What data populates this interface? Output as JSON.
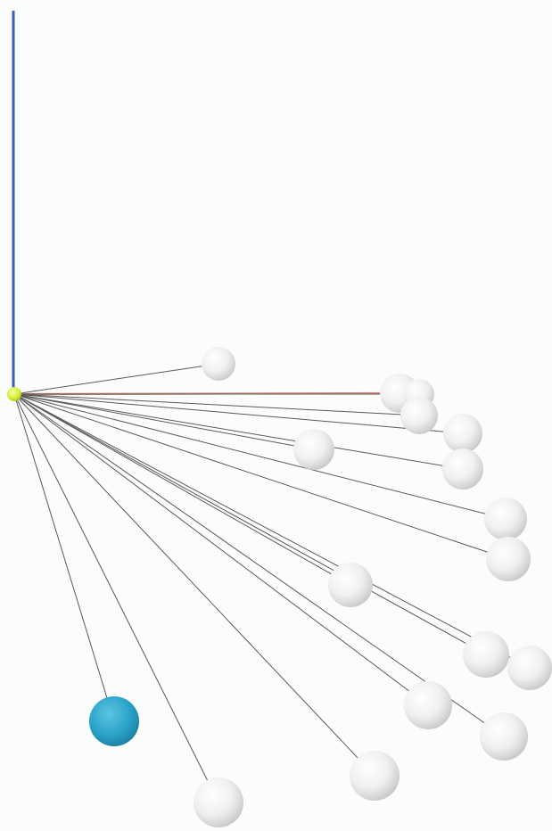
{
  "scene": {
    "description_free": true,
    "background_color": "#fbfcfc",
    "vertical_axis_color": "#3a5fb8",
    "highlight_edge_color": "#d48a78",
    "edge_color": "#5a5a5a",
    "hub_color": "#d9ef3a",
    "node_color": "#f2f2f2",
    "accent_node_color": "#2aa3c9",
    "node_count": 20,
    "accent_node_index": 18,
    "highlight_edge_index": 1
  }
}
